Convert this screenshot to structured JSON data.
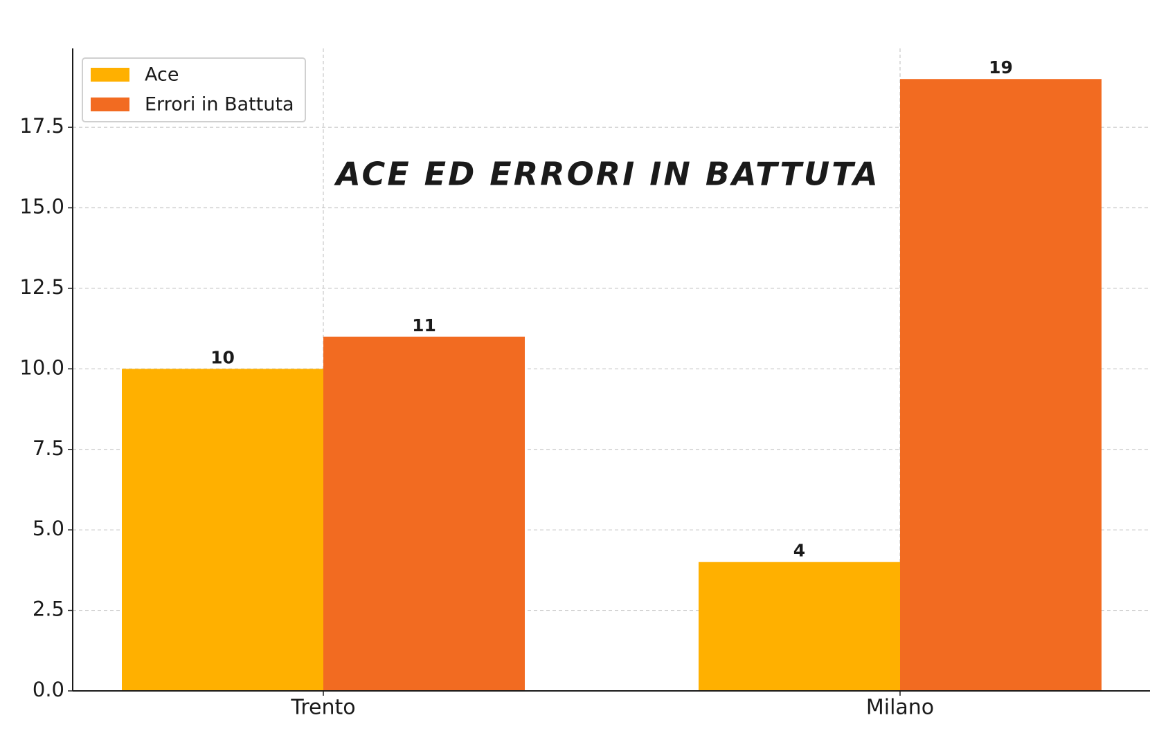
{
  "chart_data": {
    "type": "bar",
    "title": "ACE ED ERRORI IN BATTUTA",
    "categories": [
      "Trento",
      "Milano"
    ],
    "series": [
      {
        "name": "Ace",
        "color": "#FFB000",
        "values": [
          10,
          4
        ]
      },
      {
        "name": "Errori in Battuta",
        "color": "#F26B21",
        "values": [
          11,
          19
        ]
      }
    ],
    "ylim": [
      0,
      19.95
    ],
    "yticks": [
      {
        "value": 0,
        "label": "0.0"
      },
      2.5,
      {
        "value": 5,
        "label": "5.0"
      },
      7.5,
      {
        "value": 10,
        "label": "10.0"
      },
      12.5,
      {
        "value": 15,
        "label": "15.0"
      },
      17.5
    ],
    "grid": true,
    "legend": "upper left"
  }
}
